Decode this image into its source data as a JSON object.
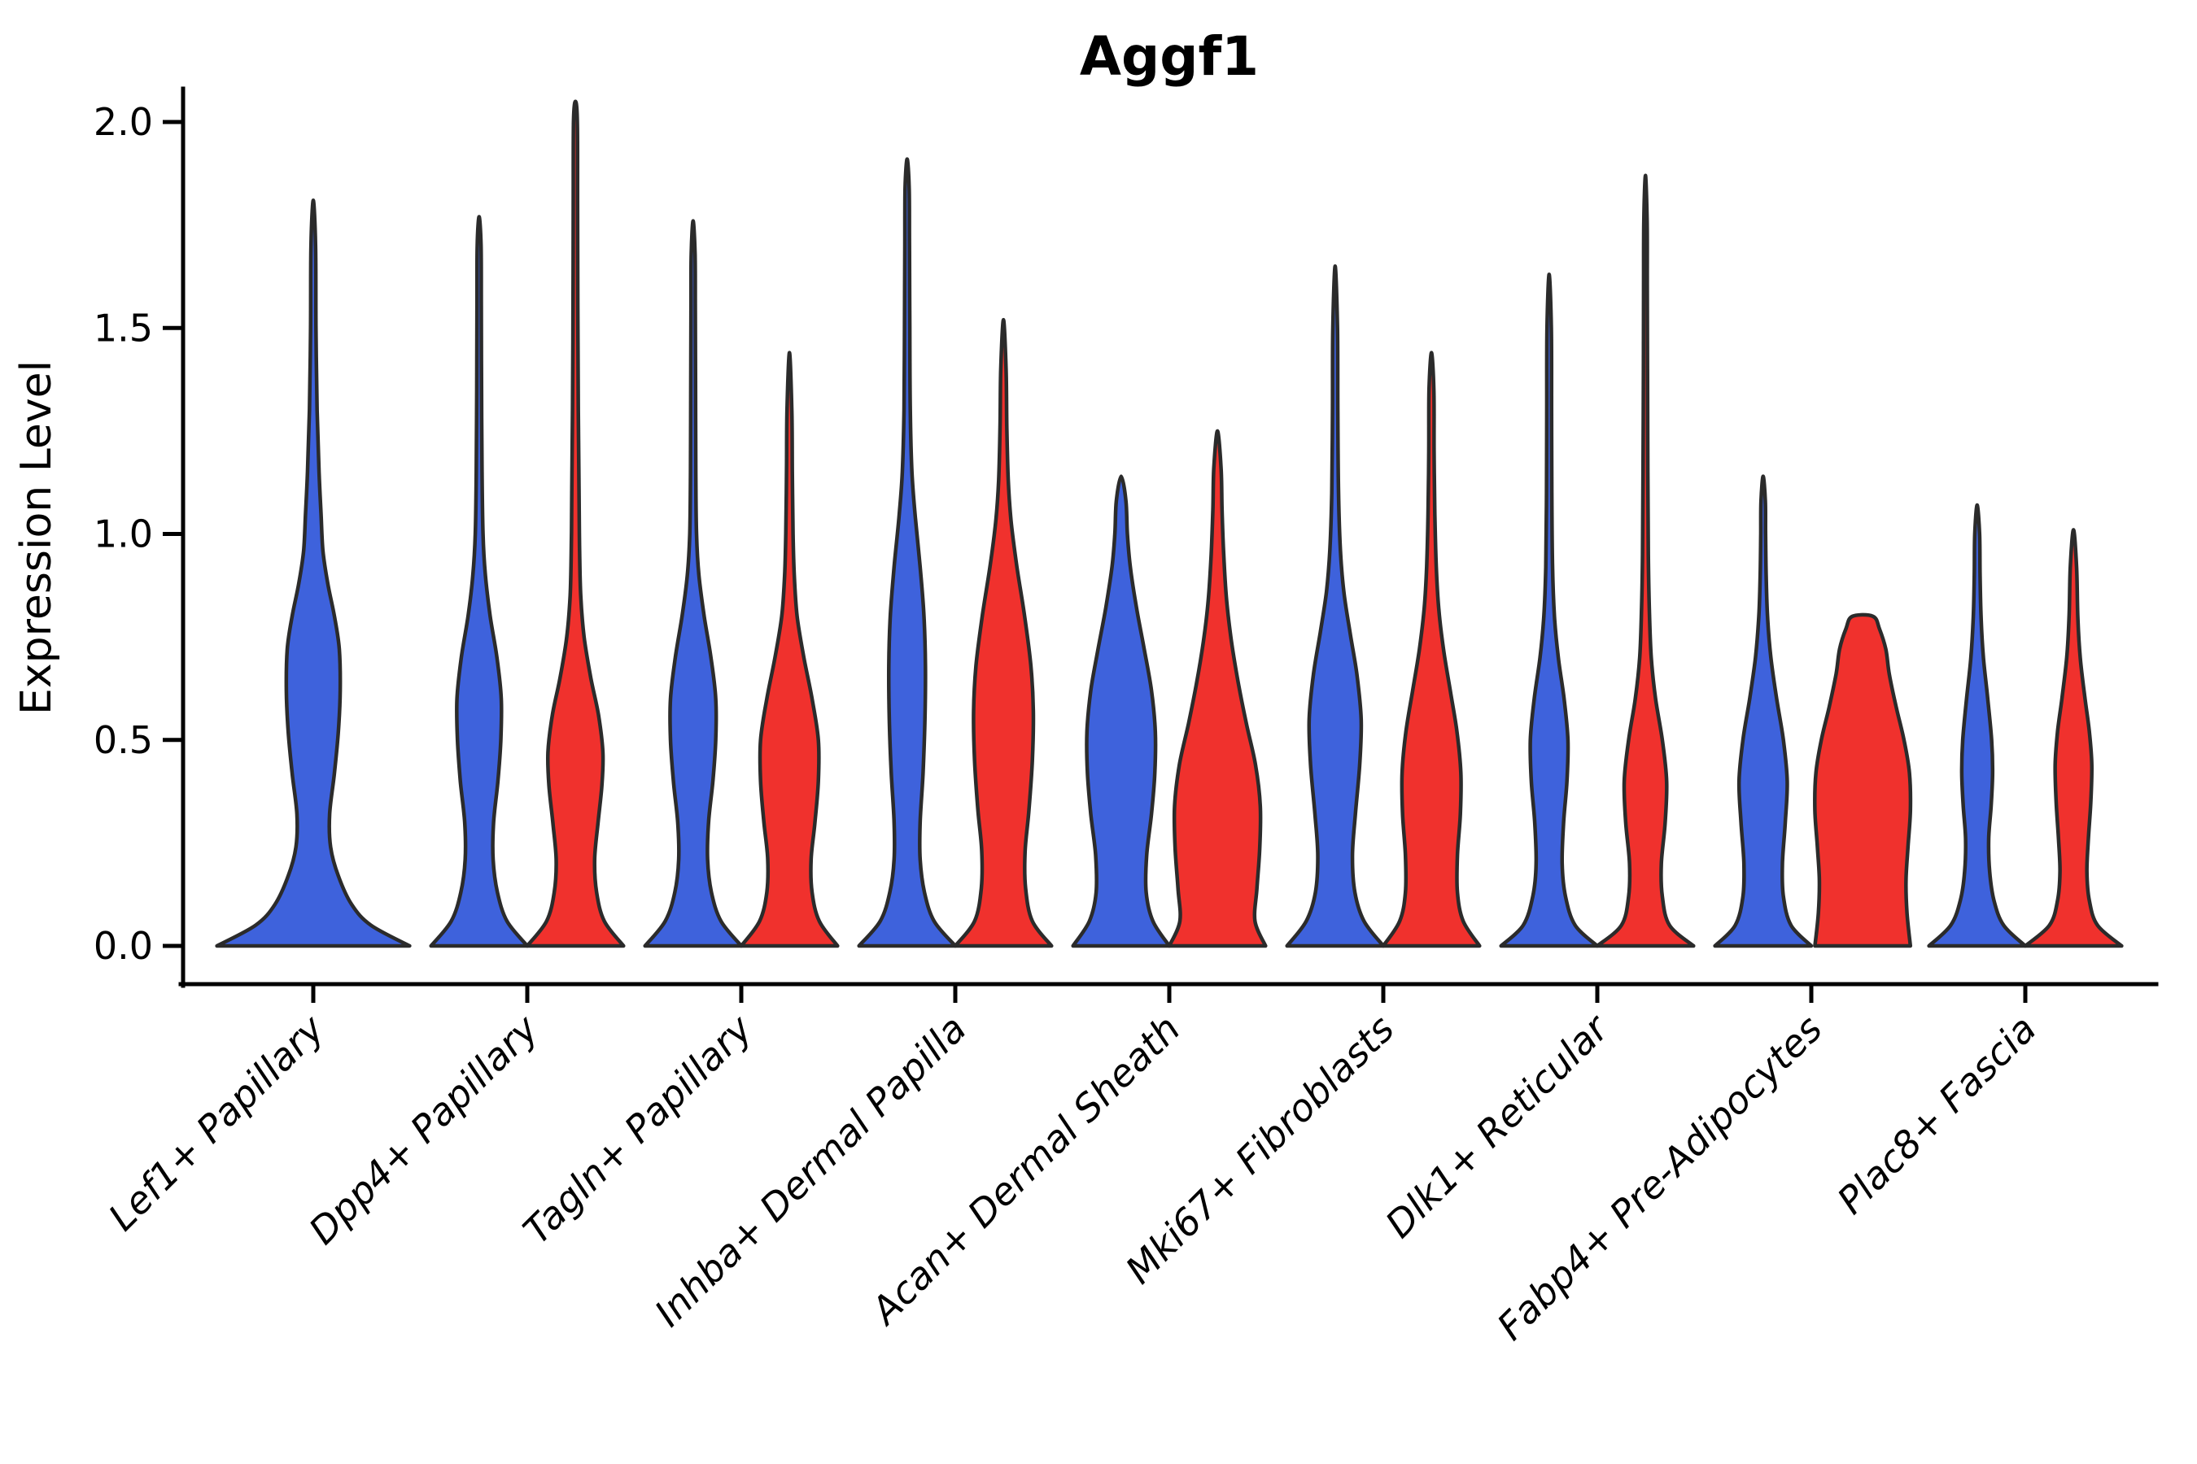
{
  "chart_data": {
    "type": "violin",
    "title": "Aggf1",
    "ylabel": "Expression Level",
    "xlabel": "",
    "ytick_labels": [
      "0.0",
      "0.5",
      "1.0",
      "1.5",
      "2.0"
    ],
    "ytick_values": [
      0,
      0.5,
      1.0,
      1.5,
      2.0
    ],
    "ylim": [
      -0.095,
      2.08
    ],
    "grid": false,
    "legend": "none",
    "background": "#ffffff",
    "colors": {
      "blue_fill": "#3E62DC",
      "red_fill": "#F0312D",
      "edge": "#2B2B2B",
      "axis": "#000000"
    },
    "categories": [
      "Lef1+ Papillary",
      "Dpp4+ Papillary",
      "Tagln+ Papillary",
      "Inhba+ Dermal Papilla",
      "Acan+ Dermal Sheath",
      "Mki67+ Fibroblasts",
      "Dlk1+ Reticular",
      "Fabp4+ Pre-Adipocytes",
      "Plac8+ Fascia"
    ],
    "violins": [
      {
        "category": 0,
        "color": "blue",
        "offset": 0,
        "width": 0.9,
        "peak": 1.81,
        "profile": [
          [
            0,
            1
          ],
          [
            0.05,
            0.6
          ],
          [
            0.1,
            0.4
          ],
          [
            0.17,
            0.26
          ],
          [
            0.24,
            0.18
          ],
          [
            0.32,
            0.17
          ],
          [
            0.42,
            0.22
          ],
          [
            0.52,
            0.26
          ],
          [
            0.62,
            0.28
          ],
          [
            0.72,
            0.27
          ],
          [
            0.8,
            0.22
          ],
          [
            0.88,
            0.15
          ],
          [
            0.96,
            0.1
          ],
          [
            1.05,
            0.08
          ],
          [
            1.15,
            0.06
          ],
          [
            1.3,
            0.04
          ],
          [
            1.5,
            0.028
          ],
          [
            1.7,
            0.024
          ],
          [
            1.81,
            0
          ]
        ]
      },
      {
        "category": 1,
        "color": "blue",
        "offset": -0.225,
        "width": 0.45,
        "peak": 1.77,
        "profile": [
          [
            0,
            1
          ],
          [
            0.06,
            0.58
          ],
          [
            0.13,
            0.38
          ],
          [
            0.21,
            0.29
          ],
          [
            0.3,
            0.3
          ],
          [
            0.4,
            0.39
          ],
          [
            0.5,
            0.45
          ],
          [
            0.6,
            0.46
          ],
          [
            0.7,
            0.37
          ],
          [
            0.8,
            0.23
          ],
          [
            0.9,
            0.13
          ],
          [
            1.0,
            0.08
          ],
          [
            1.15,
            0.06
          ],
          [
            1.35,
            0.05
          ],
          [
            1.55,
            0.045
          ],
          [
            1.7,
            0.04
          ],
          [
            1.77,
            0
          ]
        ]
      },
      {
        "category": 1,
        "color": "red",
        "offset": 0.225,
        "width": 0.45,
        "peak": 2.05,
        "profile": [
          [
            0,
            1
          ],
          [
            0.06,
            0.6
          ],
          [
            0.13,
            0.44
          ],
          [
            0.21,
            0.4
          ],
          [
            0.3,
            0.47
          ],
          [
            0.39,
            0.55
          ],
          [
            0.47,
            0.57
          ],
          [
            0.56,
            0.48
          ],
          [
            0.65,
            0.32
          ],
          [
            0.75,
            0.18
          ],
          [
            0.85,
            0.11
          ],
          [
            0.97,
            0.085
          ],
          [
            1.1,
            0.075
          ],
          [
            1.3,
            0.06
          ],
          [
            1.55,
            0.05
          ],
          [
            1.8,
            0.045
          ],
          [
            2.0,
            0.04
          ],
          [
            2.05,
            0
          ]
        ]
      },
      {
        "category": 2,
        "color": "blue",
        "offset": -0.225,
        "width": 0.45,
        "peak": 1.76,
        "profile": [
          [
            0,
            1
          ],
          [
            0.06,
            0.58
          ],
          [
            0.13,
            0.38
          ],
          [
            0.21,
            0.3
          ],
          [
            0.3,
            0.32
          ],
          [
            0.4,
            0.41
          ],
          [
            0.5,
            0.47
          ],
          [
            0.6,
            0.47
          ],
          [
            0.7,
            0.37
          ],
          [
            0.8,
            0.23
          ],
          [
            0.9,
            0.12
          ],
          [
            1.0,
            0.07
          ],
          [
            1.15,
            0.055
          ],
          [
            1.35,
            0.05
          ],
          [
            1.55,
            0.045
          ],
          [
            1.68,
            0.04
          ],
          [
            1.76,
            0
          ]
        ]
      },
      {
        "category": 2,
        "color": "red",
        "offset": 0.225,
        "width": 0.45,
        "peak": 1.44,
        "profile": [
          [
            0,
            1
          ],
          [
            0.06,
            0.62
          ],
          [
            0.13,
            0.47
          ],
          [
            0.21,
            0.45
          ],
          [
            0.3,
            0.53
          ],
          [
            0.4,
            0.6
          ],
          [
            0.5,
            0.6
          ],
          [
            0.6,
            0.47
          ],
          [
            0.7,
            0.3
          ],
          [
            0.8,
            0.16
          ],
          [
            0.9,
            0.1
          ],
          [
            1.0,
            0.075
          ],
          [
            1.15,
            0.06
          ],
          [
            1.3,
            0.05
          ],
          [
            1.44,
            0
          ]
        ]
      },
      {
        "category": 3,
        "color": "blue",
        "offset": -0.225,
        "width": 0.45,
        "peak": 1.91,
        "profile": [
          [
            0,
            1
          ],
          [
            0.06,
            0.56
          ],
          [
            0.13,
            0.36
          ],
          [
            0.21,
            0.27
          ],
          [
            0.3,
            0.27
          ],
          [
            0.42,
            0.33
          ],
          [
            0.55,
            0.37
          ],
          [
            0.68,
            0.38
          ],
          [
            0.8,
            0.35
          ],
          [
            0.92,
            0.27
          ],
          [
            1.04,
            0.17
          ],
          [
            1.15,
            0.1
          ],
          [
            1.3,
            0.065
          ],
          [
            1.5,
            0.055
          ],
          [
            1.7,
            0.048
          ],
          [
            1.84,
            0.042
          ],
          [
            1.91,
            0
          ]
        ]
      },
      {
        "category": 3,
        "color": "red",
        "offset": 0.225,
        "width": 0.45,
        "peak": 1.52,
        "profile": [
          [
            0,
            1
          ],
          [
            0.06,
            0.6
          ],
          [
            0.14,
            0.46
          ],
          [
            0.23,
            0.45
          ],
          [
            0.33,
            0.53
          ],
          [
            0.45,
            0.6
          ],
          [
            0.57,
            0.62
          ],
          [
            0.68,
            0.57
          ],
          [
            0.8,
            0.44
          ],
          [
            0.92,
            0.28
          ],
          [
            1.03,
            0.16
          ],
          [
            1.13,
            0.1
          ],
          [
            1.26,
            0.07
          ],
          [
            1.4,
            0.055
          ],
          [
            1.52,
            0
          ]
        ]
      },
      {
        "category": 4,
        "color": "blue",
        "offset": -0.225,
        "width": 0.45,
        "peak": 1.14,
        "profile": [
          [
            0,
            1
          ],
          [
            0.06,
            0.66
          ],
          [
            0.13,
            0.52
          ],
          [
            0.22,
            0.53
          ],
          [
            0.32,
            0.63
          ],
          [
            0.42,
            0.7
          ],
          [
            0.52,
            0.71
          ],
          [
            0.62,
            0.63
          ],
          [
            0.72,
            0.48
          ],
          [
            0.82,
            0.32
          ],
          [
            0.92,
            0.19
          ],
          [
            1.0,
            0.13
          ],
          [
            1.08,
            0.1
          ],
          [
            1.14,
            0
          ]
        ]
      },
      {
        "category": 4,
        "color": "red",
        "offset": 0.225,
        "width": 0.45,
        "peak": 1.25,
        "profile": [
          [
            0,
            1
          ],
          [
            0.06,
            0.78
          ],
          [
            0.14,
            0.82
          ],
          [
            0.24,
            0.88
          ],
          [
            0.34,
            0.89
          ],
          [
            0.44,
            0.79
          ],
          [
            0.54,
            0.6
          ],
          [
            0.64,
            0.43
          ],
          [
            0.74,
            0.29
          ],
          [
            0.84,
            0.19
          ],
          [
            0.95,
            0.13
          ],
          [
            1.06,
            0.095
          ],
          [
            1.16,
            0.075
          ],
          [
            1.25,
            0
          ]
        ]
      },
      {
        "category": 5,
        "color": "blue",
        "offset": -0.225,
        "width": 0.45,
        "peak": 1.65,
        "profile": [
          [
            0,
            1
          ],
          [
            0.06,
            0.6
          ],
          [
            0.13,
            0.41
          ],
          [
            0.22,
            0.36
          ],
          [
            0.32,
            0.42
          ],
          [
            0.44,
            0.51
          ],
          [
            0.55,
            0.54
          ],
          [
            0.66,
            0.45
          ],
          [
            0.76,
            0.31
          ],
          [
            0.86,
            0.18
          ],
          [
            0.96,
            0.11
          ],
          [
            1.1,
            0.07
          ],
          [
            1.3,
            0.055
          ],
          [
            1.5,
            0.048
          ],
          [
            1.65,
            0
          ]
        ]
      },
      {
        "category": 5,
        "color": "red",
        "offset": 0.225,
        "width": 0.45,
        "peak": 1.44,
        "profile": [
          [
            0,
            1
          ],
          [
            0.06,
            0.66
          ],
          [
            0.13,
            0.54
          ],
          [
            0.22,
            0.54
          ],
          [
            0.32,
            0.6
          ],
          [
            0.42,
            0.61
          ],
          [
            0.52,
            0.53
          ],
          [
            0.62,
            0.39
          ],
          [
            0.72,
            0.25
          ],
          [
            0.82,
            0.15
          ],
          [
            0.92,
            0.1
          ],
          [
            1.05,
            0.07
          ],
          [
            1.2,
            0.055
          ],
          [
            1.35,
            0.05
          ],
          [
            1.44,
            0
          ]
        ]
      },
      {
        "category": 6,
        "color": "blue",
        "offset": -0.225,
        "width": 0.45,
        "peak": 1.63,
        "profile": [
          [
            0,
            1
          ],
          [
            0.05,
            0.54
          ],
          [
            0.12,
            0.34
          ],
          [
            0.2,
            0.27
          ],
          [
            0.3,
            0.3
          ],
          [
            0.4,
            0.37
          ],
          [
            0.5,
            0.39
          ],
          [
            0.6,
            0.31
          ],
          [
            0.7,
            0.19
          ],
          [
            0.8,
            0.11
          ],
          [
            0.92,
            0.07
          ],
          [
            1.1,
            0.055
          ],
          [
            1.3,
            0.05
          ],
          [
            1.5,
            0.045
          ],
          [
            1.63,
            0
          ]
        ]
      },
      {
        "category": 6,
        "color": "red",
        "offset": 0.225,
        "width": 0.45,
        "peak": 1.87,
        "profile": [
          [
            0,
            1
          ],
          [
            0.05,
            0.5
          ],
          [
            0.12,
            0.35
          ],
          [
            0.2,
            0.33
          ],
          [
            0.3,
            0.41
          ],
          [
            0.4,
            0.44
          ],
          [
            0.5,
            0.35
          ],
          [
            0.6,
            0.21
          ],
          [
            0.7,
            0.12
          ],
          [
            0.82,
            0.08
          ],
          [
            0.95,
            0.06
          ],
          [
            1.15,
            0.05
          ],
          [
            1.4,
            0.042
          ],
          [
            1.6,
            0.038
          ],
          [
            1.76,
            0.034
          ],
          [
            1.87,
            0
          ]
        ]
      },
      {
        "category": 7,
        "color": "blue",
        "offset": -0.225,
        "width": 0.45,
        "peak": 1.14,
        "profile": [
          [
            0,
            1
          ],
          [
            0.05,
            0.58
          ],
          [
            0.12,
            0.42
          ],
          [
            0.2,
            0.4
          ],
          [
            0.3,
            0.46
          ],
          [
            0.4,
            0.5
          ],
          [
            0.5,
            0.42
          ],
          [
            0.6,
            0.28
          ],
          [
            0.7,
            0.16
          ],
          [
            0.8,
            0.09
          ],
          [
            0.9,
            0.062
          ],
          [
            1.0,
            0.05
          ],
          [
            1.08,
            0.045
          ],
          [
            1.14,
            0
          ]
        ]
      },
      {
        "category": 7,
        "color": "red",
        "offset": 0.24,
        "width": 0.46,
        "peak": 0.8,
        "flat_top": true,
        "profile": [
          [
            0,
            0.97
          ],
          [
            0.08,
            0.9
          ],
          [
            0.16,
            0.88
          ],
          [
            0.24,
            0.92
          ],
          [
            0.33,
            0.97
          ],
          [
            0.42,
            0.95
          ],
          [
            0.5,
            0.84
          ],
          [
            0.58,
            0.68
          ],
          [
            0.66,
            0.54
          ],
          [
            0.72,
            0.47
          ],
          [
            0.77,
            0.34
          ],
          [
            0.8,
            0.21
          ]
        ]
      },
      {
        "category": 8,
        "color": "blue",
        "offset": -0.225,
        "width": 0.45,
        "peak": 1.07,
        "profile": [
          [
            0,
            1
          ],
          [
            0.05,
            0.55
          ],
          [
            0.11,
            0.35
          ],
          [
            0.18,
            0.26
          ],
          [
            0.26,
            0.24
          ],
          [
            0.34,
            0.29
          ],
          [
            0.42,
            0.32
          ],
          [
            0.5,
            0.3
          ],
          [
            0.6,
            0.22
          ],
          [
            0.7,
            0.13
          ],
          [
            0.8,
            0.08
          ],
          [
            0.9,
            0.06
          ],
          [
            1.0,
            0.05
          ],
          [
            1.07,
            0
          ]
        ]
      },
      {
        "category": 8,
        "color": "red",
        "offset": 0.225,
        "width": 0.45,
        "peak": 1.01,
        "profile": [
          [
            0,
            1
          ],
          [
            0.05,
            0.5
          ],
          [
            0.11,
            0.33
          ],
          [
            0.18,
            0.28
          ],
          [
            0.26,
            0.31
          ],
          [
            0.35,
            0.36
          ],
          [
            0.44,
            0.38
          ],
          [
            0.52,
            0.33
          ],
          [
            0.6,
            0.24
          ],
          [
            0.7,
            0.14
          ],
          [
            0.8,
            0.09
          ],
          [
            0.92,
            0.065
          ],
          [
            1.01,
            0
          ]
        ]
      }
    ]
  }
}
